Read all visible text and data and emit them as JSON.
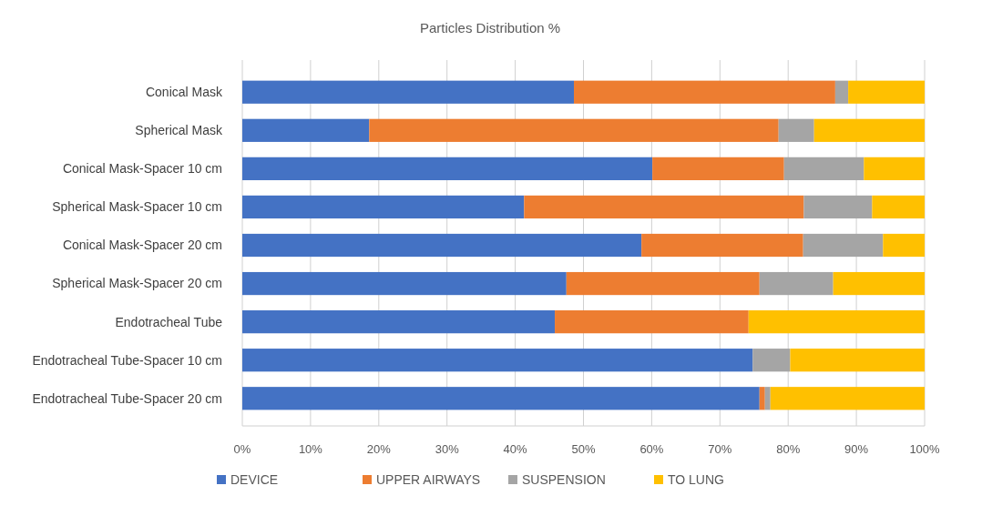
{
  "chart_data": {
    "type": "bar",
    "orientation": "horizontal",
    "stacked": true,
    "title": "Particles Distribution %",
    "categories": [
      "Conical Mask",
      "Spherical Mask",
      "Conical Mask-Spacer 10 cm",
      "Spherical Mask-Spacer 10 cm",
      "Conical Mask-Spacer 20 cm",
      "Spherical Mask-Spacer 20 cm",
      "Endotracheal Tube",
      "Endotracheal Tube-Spacer 10 cm",
      "Endotracheal Tube-Spacer 20 cm"
    ],
    "series": [
      {
        "name": "DEVICE",
        "color": "#4472c4",
        "values": [
          48.6,
          18.6,
          60.1,
          41.3,
          58.5,
          47.5,
          45.8,
          74.8,
          75.8
        ]
      },
      {
        "name": "UPPER AIRWAYS",
        "color": "#ed7d31",
        "values": [
          38.3,
          60.0,
          19.3,
          41.0,
          23.7,
          28.3,
          28.4,
          0,
          0.8
        ]
      },
      {
        "name": "SUSPENSION",
        "color": "#a5a5a5",
        "values": [
          1.9,
          5.2,
          11.7,
          10.0,
          11.7,
          10.8,
          0,
          5.5,
          0.8
        ]
      },
      {
        "name": "TO LUNG",
        "color": "#ffc000",
        "values": [
          11.2,
          16.2,
          8.9,
          7.7,
          6.1,
          13.4,
          25.8,
          19.7,
          22.6
        ]
      }
    ],
    "xlim": [
      0,
      100
    ],
    "xticks": [
      {
        "value": 0,
        "label": "0%"
      },
      {
        "value": 10,
        "label": "10%"
      },
      {
        "value": 20,
        "label": "20%"
      },
      {
        "value": 30,
        "label": "30%"
      },
      {
        "value": 40,
        "label": "40%"
      },
      {
        "value": 50,
        "label": "50%"
      },
      {
        "value": 60,
        "label": "60%"
      },
      {
        "value": 70,
        "label": "70%"
      },
      {
        "value": 80,
        "label": "80%"
      },
      {
        "value": 90,
        "label": "90%"
      },
      {
        "value": 100,
        "label": "100%"
      }
    ],
    "grid": "x",
    "legend": "bottom"
  }
}
